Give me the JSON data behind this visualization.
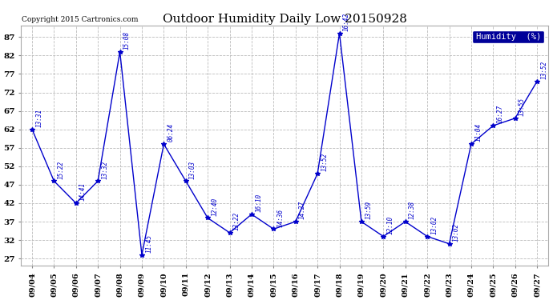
{
  "title": "Outdoor Humidity Daily Low 20150928",
  "copyright": "Copyright 2015 Cartronics.com",
  "background_color": "#ffffff",
  "plot_bg_color": "#ffffff",
  "line_color": "#0000cc",
  "marker_color": "#0000cc",
  "label_color": "#0000cc",
  "grid_color": "#bbbbbb",
  "ylim": [
    25,
    90
  ],
  "yticks": [
    27,
    32,
    37,
    42,
    47,
    52,
    57,
    62,
    67,
    72,
    77,
    82,
    87
  ],
  "dates": [
    "09/04",
    "09/05",
    "09/06",
    "09/07",
    "09/08",
    "09/09",
    "09/10",
    "09/11",
    "09/12",
    "09/13",
    "09/14",
    "09/15",
    "09/16",
    "09/17",
    "09/18",
    "09/19",
    "09/20",
    "09/21",
    "09/22",
    "09/23",
    "09/24",
    "09/25",
    "09/26",
    "09/27"
  ],
  "values": [
    62,
    48,
    42,
    48,
    83,
    28,
    58,
    48,
    38,
    34,
    39,
    35,
    37,
    50,
    88,
    37,
    33,
    37,
    33,
    31,
    58,
    63,
    65,
    75
  ],
  "time_labels": [
    "13:31",
    "15:22",
    "14:41",
    "13:32",
    "15:08",
    "11:45",
    "06:24",
    "13:03",
    "12:40",
    "13:22",
    "16:10",
    "14:36",
    "14:27",
    "13:52",
    "16:42",
    "13:59",
    "12:10",
    "12:38",
    "13:02",
    "13:02",
    "11:04",
    "16:27",
    "13:55",
    "13:52"
  ],
  "legend_text": "Humidity  (%)",
  "legend_bg": "#000099",
  "legend_fg": "#ffffff",
  "figwidth": 6.9,
  "figheight": 3.75,
  "dpi": 100
}
